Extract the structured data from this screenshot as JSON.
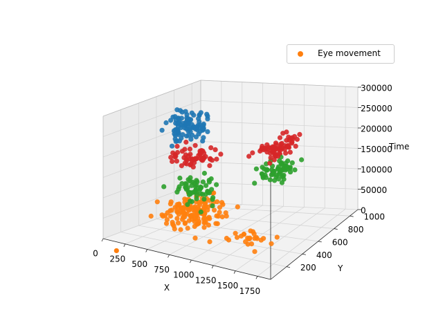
{
  "chart_data": {
    "type": "scatter",
    "projection": "3d",
    "title": "",
    "xlabel": "X",
    "ylabel": "Y",
    "zlabel": "Time",
    "xlim": [
      0,
      1900
    ],
    "ylim": [
      0,
      1100
    ],
    "zlim": [
      0,
      300000
    ],
    "x_ticks": [
      "0",
      "250",
      "500",
      "750",
      "1000",
      "1250",
      "1500",
      "1750"
    ],
    "x_tick_values": [
      0,
      250,
      500,
      750,
      1000,
      1250,
      1500,
      1750
    ],
    "y_ticks": [
      "200",
      "400",
      "600",
      "800",
      "1000"
    ],
    "y_tick_values": [
      200,
      400,
      600,
      800,
      1000
    ],
    "z_ticks": [
      "0",
      "50000",
      "100000",
      "150000",
      "200000",
      "250000",
      "300000"
    ],
    "z_tick_values": [
      0,
      50000,
      100000,
      150000,
      200000,
      250000,
      300000
    ],
    "grid": true,
    "legend_position": "top-right",
    "legend": [
      {
        "label": "Eye movement",
        "color": "#ff7f0e"
      }
    ],
    "series": [
      {
        "color": "#1f77b4",
        "clusters": [
          {
            "x": [
              150,
              750
            ],
            "y": [
              300,
              700
            ],
            "z": [
              200000,
              300000
            ],
            "n": 100
          }
        ]
      },
      {
        "color": "#d62728",
        "clusters": [
          {
            "x": [
              250,
              950
            ],
            "y": [
              250,
              650
            ],
            "z": [
              155000,
              215000
            ],
            "n": 60
          },
          {
            "x": [
              950,
              1500
            ],
            "y": [
              550,
              1050
            ],
            "z": [
              150000,
              215000
            ],
            "n": 70
          }
        ]
      },
      {
        "color": "#2ca02c",
        "clusters": [
          {
            "x": [
              300,
              1000
            ],
            "y": [
              200,
              650
            ],
            "z": [
              60000,
              160000
            ],
            "n": 60
          },
          {
            "x": [
              950,
              1500
            ],
            "y": [
              550,
              1050
            ],
            "z": [
              90000,
              165000
            ],
            "n": 60
          }
        ]
      },
      {
        "color": "#ff7f0e",
        "clusters": [
          {
            "x": [
              150,
              1050
            ],
            "y": [
              150,
              700
            ],
            "z": [
              0,
              110000
            ],
            "n": 150
          },
          {
            "x": [
              1000,
              1700
            ],
            "y": [
              150,
              450
            ],
            "z": [
              0,
              60000
            ],
            "n": 25
          }
        ]
      }
    ]
  }
}
